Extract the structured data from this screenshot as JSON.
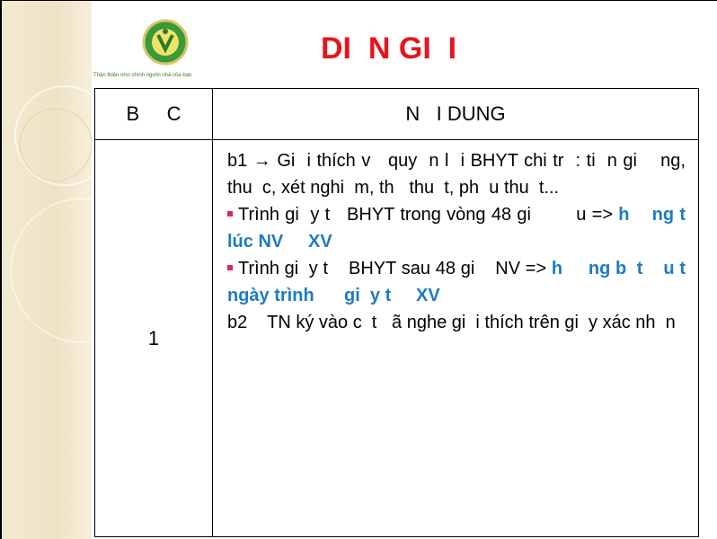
{
  "header": {
    "logo_caption": "Thân thiện như chính người nhà của bạn",
    "title": "DI  N GI  I"
  },
  "table": {
    "headers": [
      "B     C",
      "N   I DUNG"
    ],
    "rows": [
      [
        "1",
        [
          {
            "bullet": false,
            "runs": [
              {
                "text": "b1 → Gi  i thích v   quy  n l  i BHYT chi tr  : ti  n gi    ng, thu  c, xét nghi  m, th   thu  t, ph  u thu  t...",
                "emphasis": false
              }
            ]
          },
          {
            "bullet": true,
            "runs": [
              {
                "text": "Trình gi  y t   BHYT trong vòng 48 gi        u => ",
                "emphasis": false
              },
              {
                "text": "h    ng t   lúc NV     XV",
                "emphasis": true
              }
            ]
          },
          {
            "bullet": true,
            "runs": [
              {
                "text": "Trình gi  y t    BHYT sau 48 gi    NV => ",
                "emphasis": false
              },
              {
                "text": "h     ng b  t    u t   ngày trình      gi  y t     XV",
                "emphasis": true
              }
            ]
          },
          {
            "bullet": false,
            "runs": [
              {
                "text": "b2    TN ký vào c  t   ã nghe gi  i thích trên gi  y xác nh  n",
                "emphasis": false
              }
            ]
          }
        ]
      ]
    ]
  }
}
